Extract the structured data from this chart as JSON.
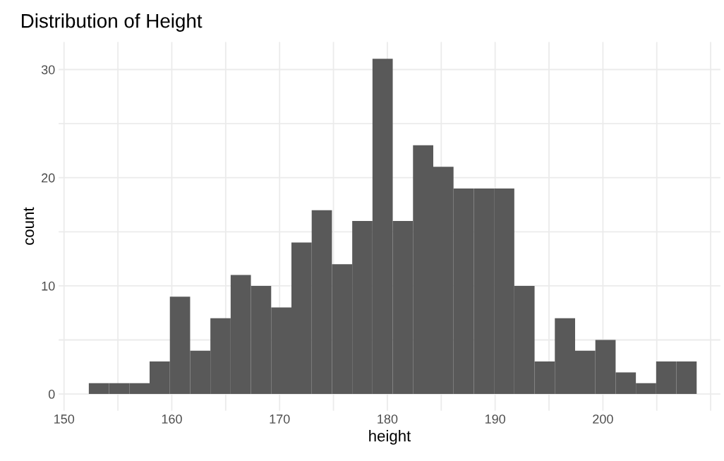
{
  "chart_data": {
    "type": "histogram",
    "title": "Distribution of Height",
    "xlabel": "height",
    "ylabel": "count",
    "bins": [
      152.3,
      154.18,
      156.06,
      157.94,
      159.82,
      161.7,
      163.58,
      165.46,
      167.34,
      169.22,
      171.1,
      172.98,
      174.86,
      176.74,
      178.62,
      180.5,
      182.38,
      184.26,
      186.14,
      188.02,
      189.9,
      191.78,
      193.66,
      195.54,
      197.42,
      199.3,
      201.18,
      203.06,
      204.94,
      206.82,
      208.7
    ],
    "values": [
      1,
      1,
      1,
      3,
      9,
      4,
      7,
      11,
      10,
      8,
      14,
      17,
      12,
      16,
      31,
      16,
      23,
      21,
      19,
      19,
      19,
      10,
      3,
      7,
      4,
      5,
      2,
      1,
      3,
      3
    ],
    "color": "#595959",
    "xlim": [
      149.5,
      210.9
    ],
    "ylim": [
      -1.55,
      32.55
    ],
    "xticks": [
      150,
      {
        "value": 155,
        "label": null
      },
      160,
      {
        "value": 165,
        "label": null
      },
      170,
      {
        "value": 175,
        "label": null
      },
      180,
      {
        "value": 185,
        "label": null
      },
      190,
      {
        "value": 195,
        "label": null
      },
      200,
      {
        "value": 205,
        "label": null
      },
      {
        "value": 210,
        "label": null
      }
    ],
    "yticks": [
      0,
      {
        "value": 5,
        "label": null
      },
      10,
      {
        "value": 15,
        "label": null
      },
      20,
      {
        "value": 25,
        "label": null
      },
      30
    ],
    "grid": true
  }
}
